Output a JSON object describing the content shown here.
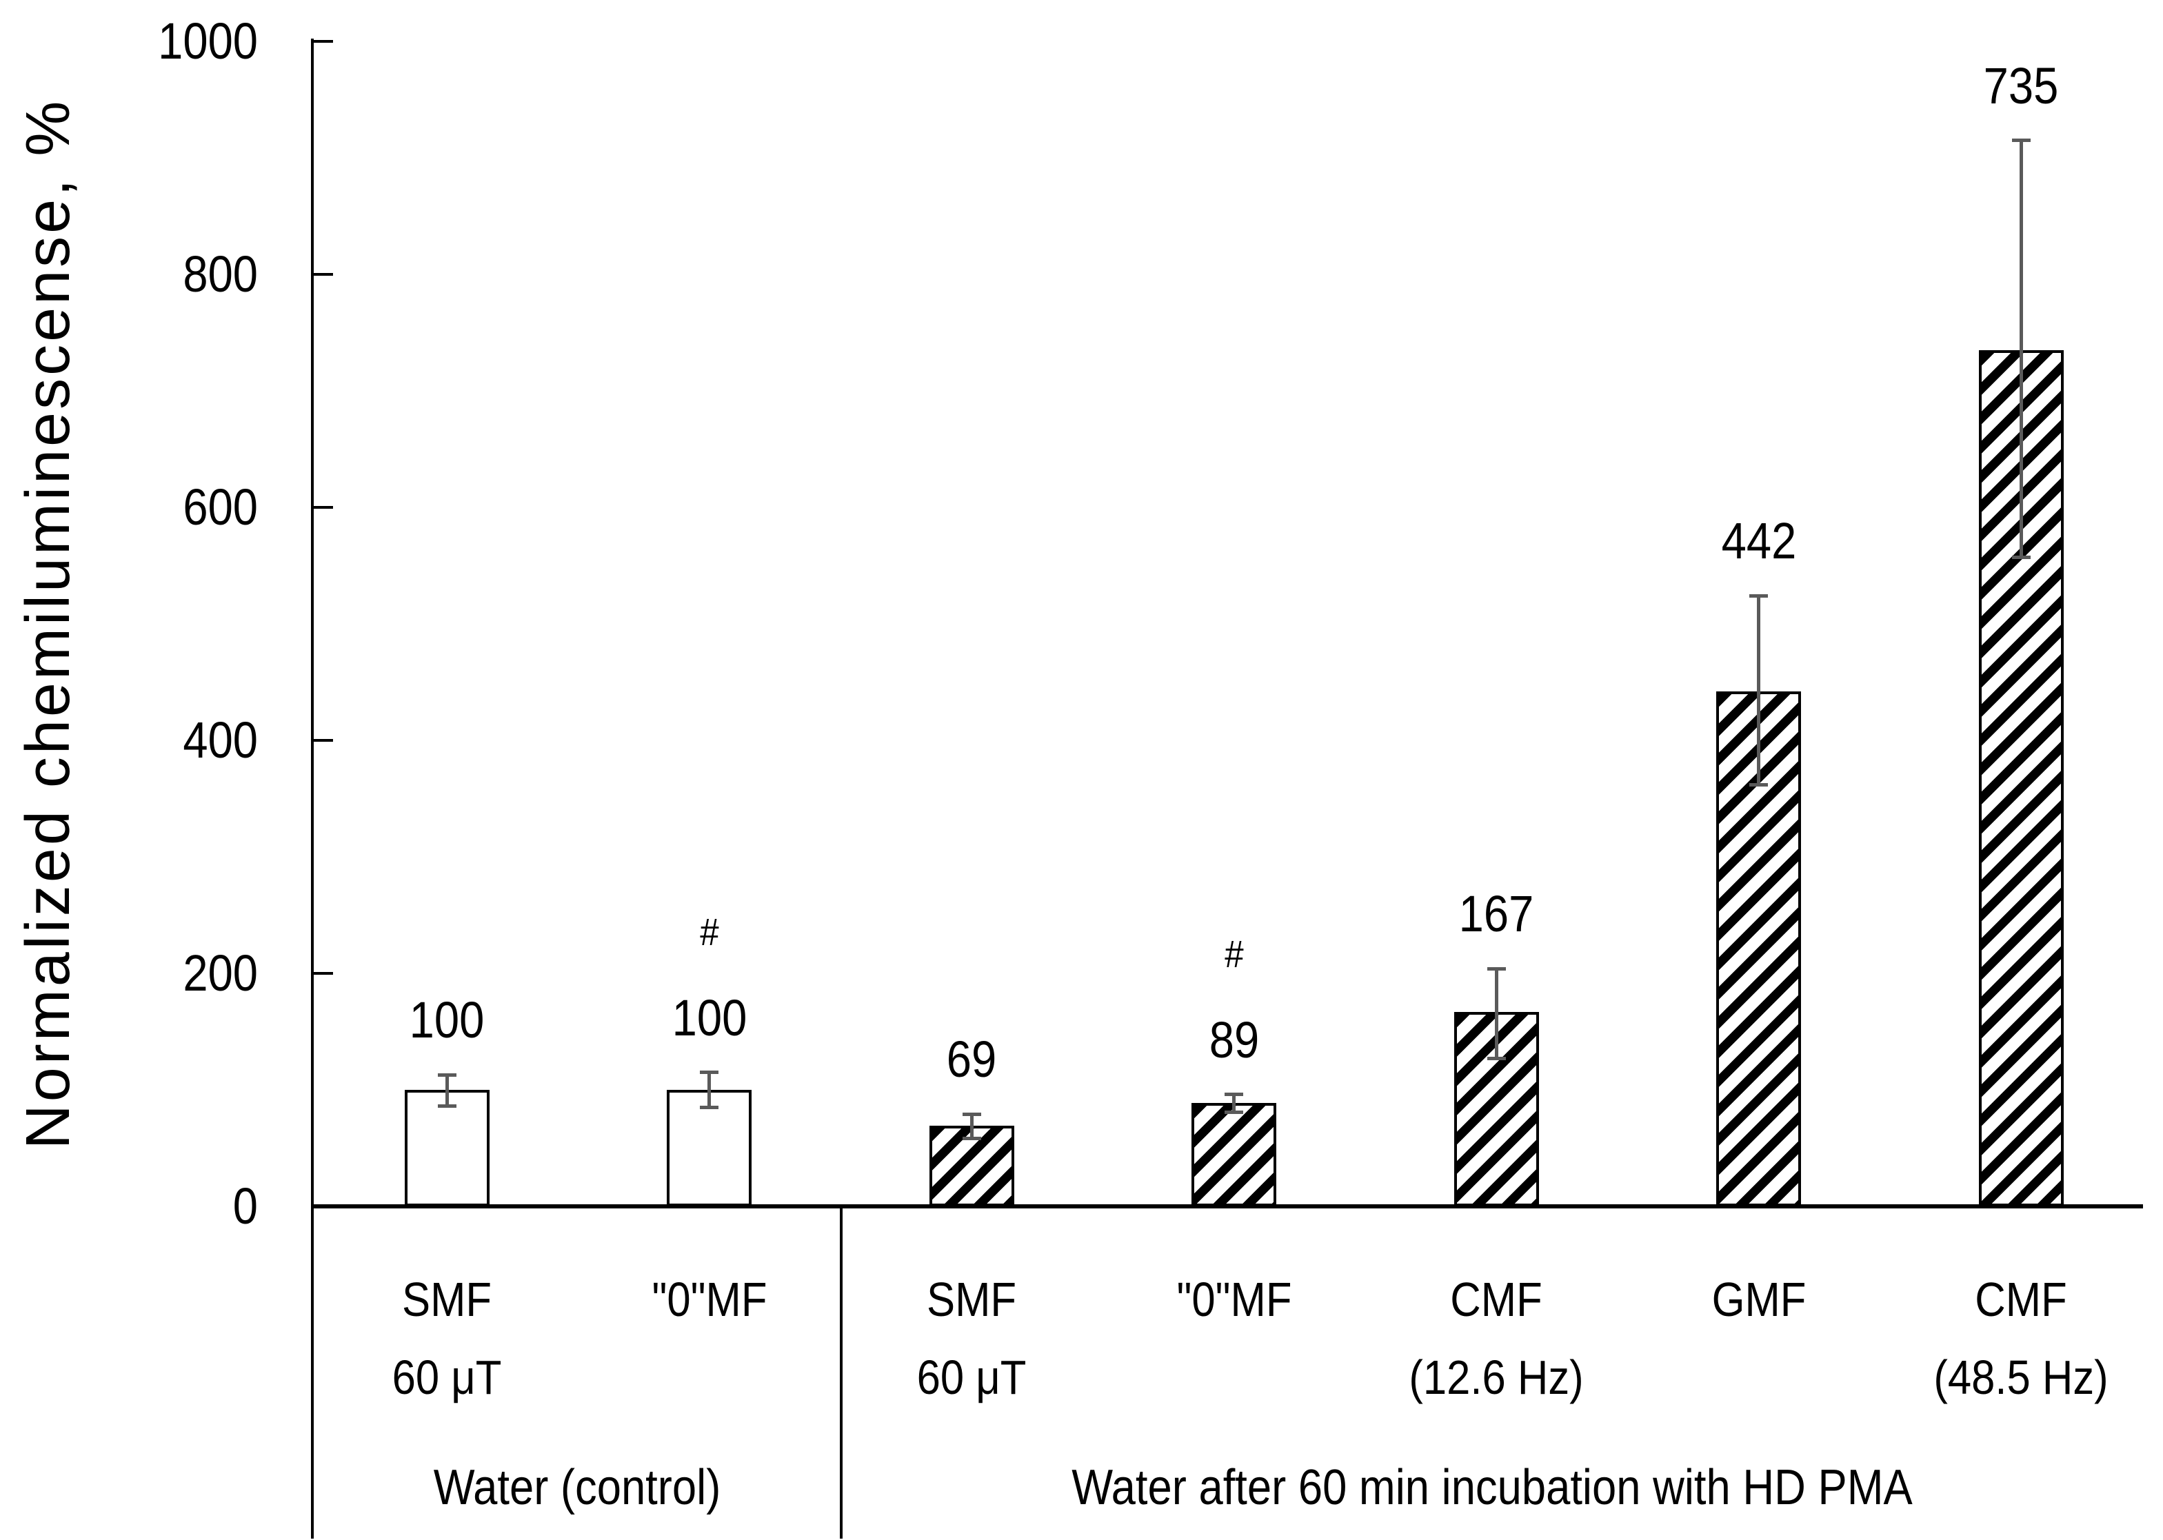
{
  "chart_data": {
    "type": "bar",
    "title": "",
    "xlabel": "",
    "ylabel": "Normalized chemiluminescense, %",
    "ylim": [
      0,
      1000
    ],
    "yticks": [
      0,
      200,
      400,
      600,
      800,
      1000
    ],
    "grid": false,
    "legend": false,
    "style": {
      "bar_fill_plain": "#ffffff",
      "bar_border": "#000000",
      "hatch_color": "#000000",
      "error_bar_color": "#5a5a5a",
      "text_color": "#000000"
    },
    "groups": [
      {
        "label": "Water (control)",
        "bars": [
          {
            "label_line1": "SMF",
            "label_line2": "60 μT",
            "value": 100,
            "err_up": 13,
            "err_down": 14,
            "hatched": false,
            "annotation": ""
          },
          {
            "label_line1": "\"0\"MF",
            "label_line2": "",
            "value": 100,
            "err_up": 15,
            "err_down": 15,
            "hatched": false,
            "annotation": "#"
          }
        ]
      },
      {
        "label": "Water after 60 min incubation with HD PMA",
        "bars": [
          {
            "label_line1": "SMF",
            "label_line2": "60 μT",
            "value": 69,
            "err_up": 10,
            "err_down": 11,
            "hatched": true,
            "annotation": ""
          },
          {
            "label_line1": "\"0\"MF",
            "label_line2": "",
            "value": 89,
            "err_up": 7,
            "err_down": 8,
            "hatched": true,
            "annotation": "#"
          },
          {
            "label_line1": "CMF",
            "label_line2": "(12.6 Hz)",
            "value": 167,
            "err_up": 37,
            "err_down": 40,
            "hatched": true,
            "annotation": ""
          },
          {
            "label_line1": "GMF",
            "label_line2": "",
            "value": 442,
            "err_up": 82,
            "err_down": 80,
            "hatched": true,
            "annotation": ""
          },
          {
            "label_line1": "CMF",
            "label_line2": "(48.5 Hz)",
            "value": 735,
            "err_up": 180,
            "err_down": 178,
            "hatched": true,
            "annotation": ""
          }
        ]
      }
    ]
  }
}
